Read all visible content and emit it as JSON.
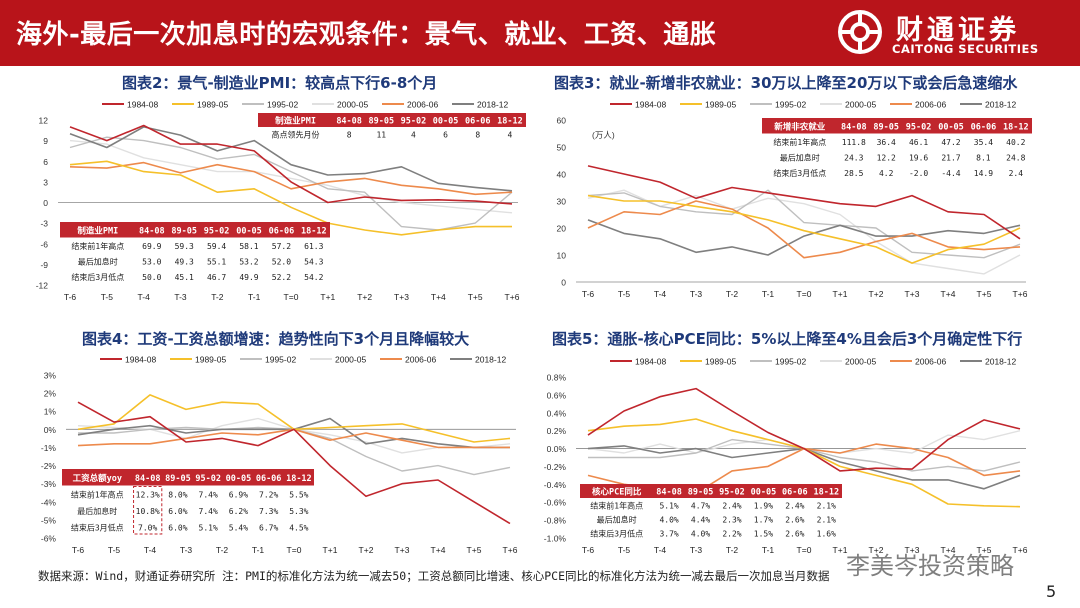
{
  "header": {
    "title": "海外-最后一次加息时的宏观条件：景气、就业、工资、通胀",
    "logo_cn": "财通证券",
    "logo_en": "CAITONG SECURITIES"
  },
  "legend_names": [
    "1984-08",
    "1989-05",
    "1995-02",
    "2000-05",
    "2006-06",
    "2018-12"
  ],
  "x_labels": [
    "T-6",
    "T-5",
    "T-4",
    "T-3",
    "T-2",
    "T-1",
    "T=0",
    "T+1",
    "T+2",
    "T+3",
    "T+4",
    "T+5",
    "T+6"
  ],
  "colors": {
    "s1984": "#c0262d",
    "s1989": "#f5c02a",
    "s1995": "#bfbfbf",
    "s2000": "#e0e0e0",
    "s2006": "#ed8a4c",
    "s2018": "#7f7f7f",
    "table_head": "#c0262d"
  },
  "charts": {
    "pmi": {
      "title": "图表2：景气-制造业PMI：较高点下行6-8个月",
      "unit": "",
      "table_top": {
        "headers": [
          "制造业PMI",
          "84-08",
          "89-05",
          "95-02",
          "00-05",
          "06-06",
          "18-12"
        ],
        "rows": [
          [
            "高点领先月份",
            "8",
            "11",
            "4",
            "6",
            "8",
            "4"
          ]
        ]
      },
      "table": {
        "headers": [
          "制造业PMI",
          "84-08",
          "89-05",
          "95-02",
          "00-05",
          "06-06",
          "18-12"
        ],
        "rows": [
          [
            "结束前1年高点",
            "69.9",
            "59.3",
            "59.4",
            "58.1",
            "57.2",
            "61.3"
          ],
          [
            "最后加息时",
            "53.0",
            "49.3",
            "55.1",
            "53.2",
            "52.0",
            "54.3"
          ],
          [
            "结束后3月低点",
            "50.0",
            "45.1",
            "46.7",
            "49.9",
            "52.2",
            "54.2"
          ]
        ]
      }
    },
    "nfp": {
      "title": "图表3：就业-新增非农就业：30万以上降至20万以下或会后急速缩水",
      "unit": "(万人)",
      "table": {
        "headers": [
          "新增非农就业",
          "84-08",
          "89-05",
          "95-02",
          "00-05",
          "06-06",
          "18-12"
        ],
        "rows": [
          [
            "结束前1年高点",
            "111.8",
            "36.4",
            "46.1",
            "47.2",
            "35.4",
            "40.2"
          ],
          [
            "最后加息时",
            "24.3",
            "12.2",
            "19.6",
            "21.7",
            "8.1",
            "24.8"
          ],
          [
            "结束后3月低点",
            "28.5",
            "4.2",
            "-2.0",
            "-4.4",
            "14.9",
            "2.4"
          ]
        ]
      }
    },
    "wage": {
      "title": "图表4：工资-工资总额增速：趋势性向下3个月且降幅较大",
      "unit": "",
      "table": {
        "headers": [
          "工资总额yoy",
          "84-08",
          "89-05",
          "95-02",
          "00-05",
          "06-06",
          "18-12"
        ],
        "rows": [
          [
            "结束前1年高点",
            "12.3%",
            "8.0%",
            "7.4%",
            "6.9%",
            "7.2%",
            "5.5%"
          ],
          [
            "最后加息时",
            "10.8%",
            "6.0%",
            "7.4%",
            "6.2%",
            "7.3%",
            "5.3%"
          ],
          [
            "结束后3月低点",
            "7.0%",
            "6.0%",
            "5.1%",
            "5.4%",
            "6.7%",
            "4.5%"
          ]
        ]
      }
    },
    "pce": {
      "title": "图表5：通胀-核心PCE同比：5%以上降至4%且会后3个月确定性下行",
      "unit": "",
      "table": {
        "headers": [
          "核心PCE同比",
          "84-08",
          "89-05",
          "95-02",
          "00-05",
          "06-06",
          "18-12"
        ],
        "rows": [
          [
            "结束前1年高点",
            "5.1%",
            "4.7%",
            "2.4%",
            "1.9%",
            "2.4%",
            "2.1%"
          ],
          [
            "最后加息时",
            "4.0%",
            "4.4%",
            "2.3%",
            "1.7%",
            "2.6%",
            "2.1%"
          ],
          [
            "结束后3月低点",
            "3.7%",
            "4.0%",
            "2.2%",
            "1.5%",
            "2.6%",
            "1.6%"
          ]
        ]
      }
    }
  },
  "chart_data": [
    {
      "type": "line",
      "title": "图表2：景气-制造业PMI：较高点下行6-8个月",
      "ylim": [
        -12,
        12
      ],
      "yticks": [
        "12",
        "9",
        "6",
        "3",
        "0",
        "-3",
        "-6",
        "-9",
        "-12"
      ],
      "yvalues": [
        12,
        9,
        6,
        3,
        0,
        -3,
        -6,
        -9,
        -12
      ],
      "series": [
        {
          "name": "1984-08",
          "values": [
            11,
            9,
            11.2,
            8.5,
            8.5,
            7.5,
            3,
            0,
            0.8,
            0.3,
            0.4,
            0.2,
            -0.2
          ]
        },
        {
          "name": "1989-05",
          "values": [
            5.5,
            6,
            4.5,
            4,
            1.5,
            2,
            -0.7,
            -3,
            -4,
            -4.7,
            -4,
            -3.5,
            -3.5
          ]
        },
        {
          "name": "1995-02",
          "values": [
            8,
            9.5,
            9,
            8,
            6.3,
            7,
            4.5,
            2,
            1.5,
            -3.5,
            -4,
            -3,
            1.5
          ]
        },
        {
          "name": "2000-05",
          "values": [
            9,
            8.5,
            6.5,
            5.5,
            4.5,
            4.5,
            3.5,
            2.5,
            1,
            0,
            -0.5,
            -1,
            -1.5
          ]
        },
        {
          "name": "2006-06",
          "values": [
            5.2,
            5,
            5.8,
            4.3,
            5.5,
            4.5,
            2,
            3,
            3.5,
            2.5,
            2,
            1.2,
            1.5
          ]
        },
        {
          "name": "2018-12",
          "values": [
            10,
            8,
            11,
            9.8,
            7.5,
            9,
            5.5,
            4,
            4.2,
            5.2,
            2.8,
            2.2,
            1.7
          ]
        }
      ]
    },
    {
      "type": "line",
      "title": "图表3：就业-新增非农就业：30万以上降至20万以下或会后急速缩水",
      "ylim": [
        0,
        60
      ],
      "yticks": [
        "60",
        "50",
        "40",
        "30",
        "20",
        "10",
        "0"
      ],
      "yvalues": [
        60,
        50,
        40,
        30,
        20,
        10,
        0
      ],
      "series": [
        {
          "name": "1984-08",
          "values": [
            43,
            40,
            37,
            31,
            35,
            33,
            31,
            29,
            28,
            32,
            26,
            25,
            16
          ]
        },
        {
          "name": "1989-05",
          "values": [
            32,
            30,
            30,
            28,
            26,
            23,
            19,
            16,
            13,
            7,
            12,
            14,
            20
          ]
        },
        {
          "name": "1995-02",
          "values": [
            32,
            33,
            28,
            26,
            25,
            34,
            22,
            21,
            20,
            11,
            10,
            9,
            14
          ]
        },
        {
          "name": "2000-05",
          "values": [
            31,
            34,
            28,
            32,
            27,
            31,
            29,
            25,
            15,
            7,
            5,
            3,
            10
          ]
        },
        {
          "name": "2006-06",
          "values": [
            20,
            26,
            25,
            30,
            27,
            20,
            9,
            11,
            15,
            18,
            13,
            12,
            13
          ]
        },
        {
          "name": "2018-12",
          "values": [
            23,
            18,
            16,
            11,
            13,
            10,
            17,
            21,
            17,
            17,
            19,
            18,
            21
          ]
        }
      ]
    },
    {
      "type": "line",
      "title": "图表4：工资-工资总额增速：趋势性向下3个月且降幅较大",
      "ylim": [
        -6,
        3
      ],
      "yticks": [
        "3%",
        "2%",
        "1%",
        "0%",
        "-1%",
        "-2%",
        "-3%",
        "-4%",
        "-5%",
        "-6%"
      ],
      "yvalues": [
        3,
        2,
        1,
        0,
        -1,
        -2,
        -3,
        -4,
        -5,
        -6
      ],
      "series": [
        {
          "name": "1984-08",
          "values": [
            1.5,
            0.4,
            0.7,
            -0.7,
            -0.5,
            -0.9,
            0,
            -2,
            -3.7,
            -3,
            -2.8,
            -4,
            -5.2
          ]
        },
        {
          "name": "1989-05",
          "values": [
            0,
            0.3,
            1.9,
            1.1,
            1.5,
            1.4,
            0,
            0.1,
            0.2,
            0.3,
            -0.2,
            -0.7,
            -0.5
          ]
        },
        {
          "name": "1995-02",
          "values": [
            -0.2,
            -0.2,
            0,
            0.1,
            0,
            0.1,
            0,
            -0.5,
            -1.5,
            -2.3,
            -2,
            -2.5,
            -2.1
          ]
        },
        {
          "name": "2000-05",
          "values": [
            0.2,
            0.1,
            0,
            -0.5,
            0.2,
            0.6,
            0,
            -0.3,
            -0.7,
            -1.3,
            -1,
            -1,
            -0.8
          ]
        },
        {
          "name": "2006-06",
          "values": [
            -0.9,
            -0.8,
            -0.8,
            -0.5,
            -0.2,
            -0.3,
            0,
            -0.6,
            -0.2,
            -0.6,
            -1,
            -1,
            -1
          ]
        },
        {
          "name": "2018-12",
          "values": [
            -0.3,
            0,
            0.2,
            -0.2,
            0,
            0,
            0,
            0.6,
            -0.8,
            -0.5,
            -0.8,
            -1,
            -1
          ]
        }
      ]
    },
    {
      "type": "line",
      "title": "图表5：通胀-核心PCE同比：5%以上降至4%且会后3个月确定性下行",
      "ylim": [
        -1,
        0.8
      ],
      "yticks": [
        "0.8%",
        "0.6%",
        "0.4%",
        "0.2%",
        "0.0%",
        "-0.2%",
        "-0.4%",
        "-0.6%",
        "-0.8%",
        "-1.0%"
      ],
      "yvalues": [
        0.8,
        0.6,
        0.4,
        0.2,
        0,
        -0.2,
        -0.4,
        -0.6,
        -0.8,
        -1
      ],
      "series": [
        {
          "name": "1984-08",
          "values": [
            0.15,
            0.42,
            0.58,
            0.67,
            0.42,
            0.18,
            0,
            -0.25,
            -0.22,
            -0.23,
            0.1,
            0.32,
            0.22
          ]
        },
        {
          "name": "1989-05",
          "values": [
            0.2,
            0.25,
            0.27,
            0.33,
            0.2,
            0.1,
            0,
            -0.2,
            -0.3,
            -0.4,
            -0.62,
            -0.64,
            -0.65
          ]
        },
        {
          "name": "1995-02",
          "values": [
            -0.1,
            -0.1,
            -0.1,
            -0.05,
            0.1,
            0.05,
            0,
            -0.1,
            -0.15,
            -0.25,
            -0.2,
            -0.25,
            -0.15
          ]
        },
        {
          "name": "2000-05",
          "values": [
            0,
            -0.05,
            0.05,
            -0.05,
            0.05,
            0.1,
            0,
            -0.05,
            0,
            -0.05,
            0.15,
            0.1,
            0.2
          ]
        },
        {
          "name": "2006-06",
          "values": [
            -0.3,
            -0.4,
            -0.45,
            -0.5,
            -0.25,
            -0.2,
            0,
            -0.05,
            0.05,
            0,
            -0.1,
            -0.3,
            -0.25
          ]
        },
        {
          "name": "2018-12",
          "values": [
            0,
            0.03,
            -0.05,
            0,
            -0.1,
            -0.05,
            0,
            -0.15,
            -0.25,
            -0.35,
            -0.35,
            -0.45,
            -0.3
          ]
        }
      ]
    }
  ],
  "footer": "数据来源：Wind，财通证券研究所   注：PMI的标准化方法为统一减去50；工资总额同比增速、核心PCE同比的标准化方法为统一减去最后一次加息当月数据",
  "watermark": "李美岑投资策略",
  "page_number": "5"
}
